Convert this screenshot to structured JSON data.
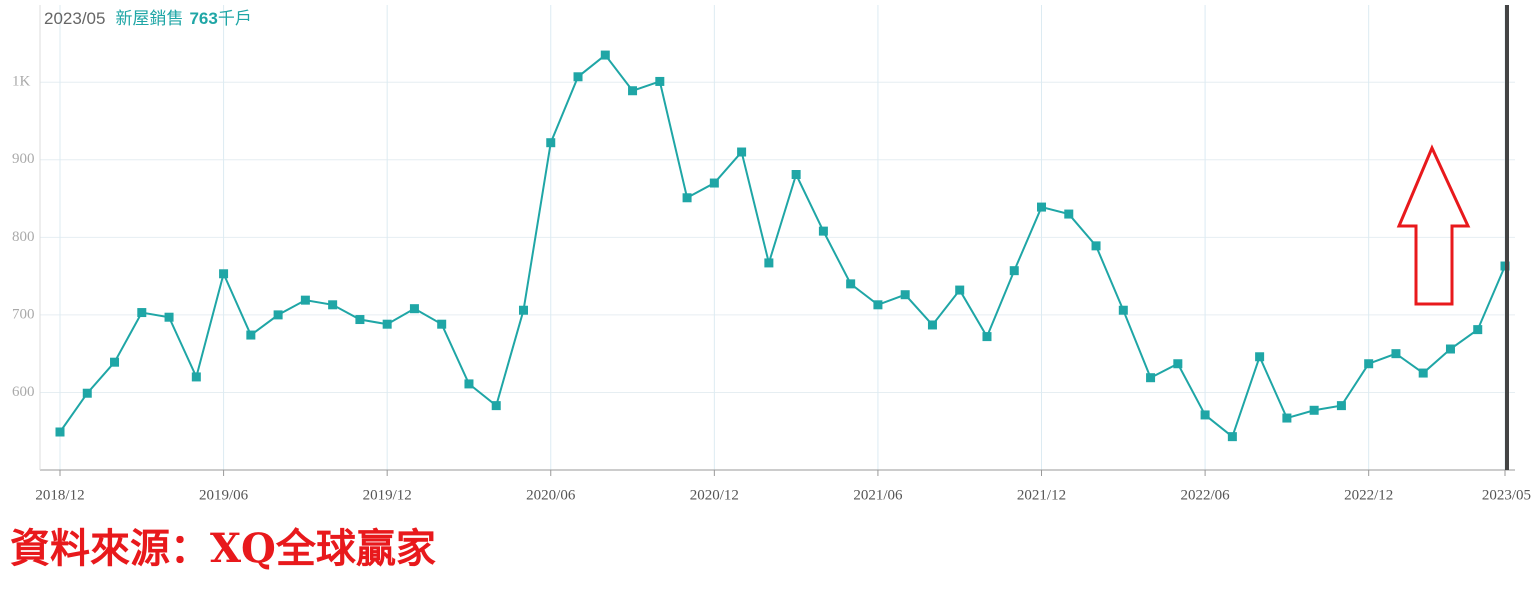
{
  "chart_data": {
    "type": "line",
    "header": {
      "date": "2023/05",
      "label": "新屋銷售",
      "value": 763,
      "unit": "千戶"
    },
    "source": "資料來源：XQ全球贏家",
    "categories": [
      "2018/12",
      null,
      null,
      null,
      null,
      null,
      "2019/06",
      null,
      null,
      null,
      null,
      null,
      "2019/12",
      null,
      null,
      null,
      null,
      null,
      "2020/06",
      null,
      null,
      null,
      null,
      null,
      "2020/12",
      null,
      null,
      null,
      null,
      null,
      "2021/06",
      null,
      null,
      null,
      null,
      null,
      "2021/12",
      null,
      null,
      null,
      null,
      null,
      "2022/06",
      null,
      null,
      null,
      null,
      null,
      "2022/12",
      null,
      null,
      null,
      null,
      "2023/05"
    ],
    "series": [
      {
        "name": "新屋銷售",
        "color": "#1fa6a6",
        "values": [
          549,
          599,
          639,
          703,
          697,
          620,
          753,
          674,
          700,
          719,
          713,
          694,
          688,
          708,
          688,
          611,
          583,
          706,
          922,
          1007,
          1035,
          989,
          1001,
          851,
          870,
          910,
          767,
          881,
          808,
          740,
          713,
          726,
          687,
          732,
          672,
          757,
          839,
          830,
          789,
          706,
          619,
          637,
          571,
          543,
          646,
          567,
          577,
          583,
          637,
          650,
          625,
          656,
          681,
          763
        ]
      }
    ],
    "ylim": [
      500,
      1106
    ],
    "yticks": [
      600,
      700,
      800,
      900,
      {
        "value": 1000,
        "label": "1K"
      }
    ],
    "grid": true
  }
}
